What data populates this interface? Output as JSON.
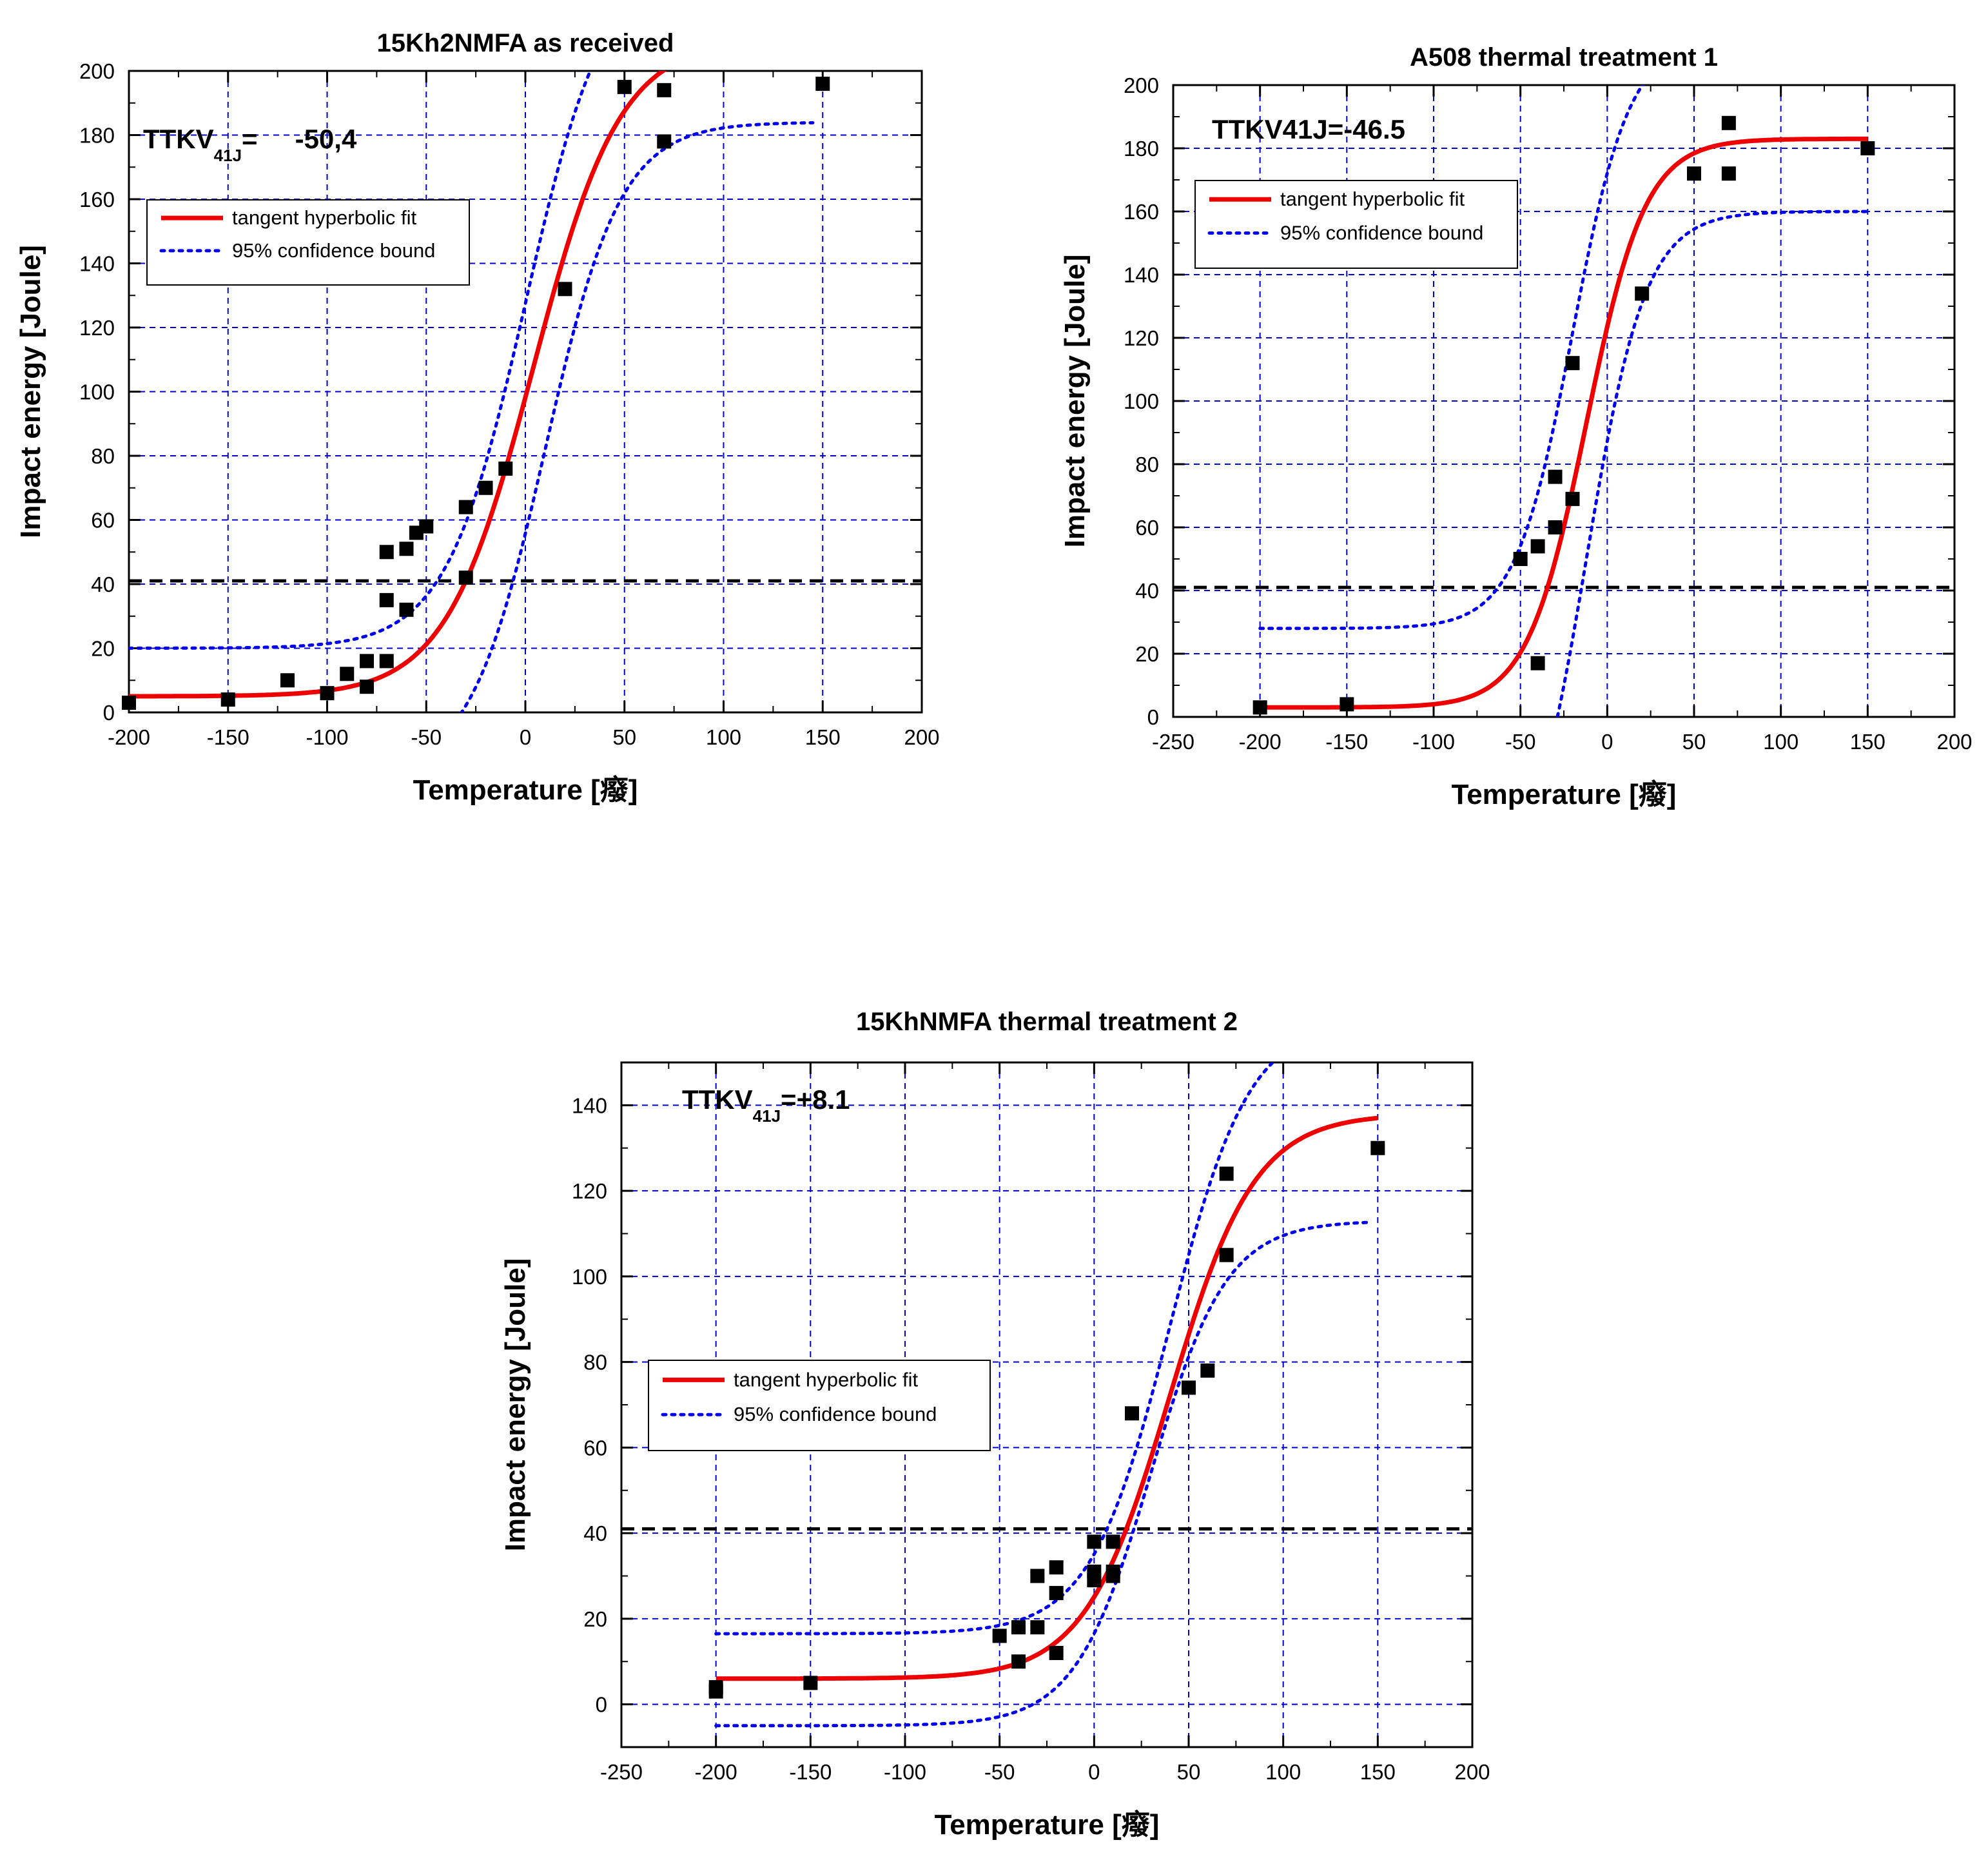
{
  "chart_data": [
    {
      "type": "scatter",
      "title": "15Kh2NMFA as received",
      "xlabel": "Temperature [",
      "xlabel_unit_glyph": "癈",
      "xlabel_close": "]",
      "ylabel": "Impact energy [Joule]",
      "xlim": [
        -200,
        200
      ],
      "ylim": [
        0,
        200
      ],
      "xticks": [
        -200,
        -150,
        -100,
        -50,
        0,
        50,
        100,
        150,
        200
      ],
      "xtick_labels": [
        "-200",
        "-150",
        "-100",
        "-50",
        "0",
        "50",
        "100",
        "150",
        "200"
      ],
      "yticks": [
        0,
        20,
        40,
        60,
        80,
        100,
        120,
        140,
        160,
        180,
        200
      ],
      "ytick_labels": [
        "0",
        "20",
        "40",
        "60",
        "80",
        "100",
        "120",
        "140",
        "160",
        "180",
        "200"
      ],
      "annotation": {
        "prefix": "TTKV",
        "sub": "41J",
        "eq": "=",
        "value": "-50,4"
      },
      "reference_level": 41,
      "legend": {
        "position": "upper-left",
        "entries": [
          "tangent hyperbolic fit",
          "95% confidence bound"
        ]
      },
      "grid": true,
      "measured_points": [
        {
          "x": -200,
          "y": 3
        },
        {
          "x": -150,
          "y": 4
        },
        {
          "x": -120,
          "y": 10
        },
        {
          "x": -100,
          "y": 6
        },
        {
          "x": -90,
          "y": 12
        },
        {
          "x": -80,
          "y": 8
        },
        {
          "x": -80,
          "y": 16
        },
        {
          "x": -70,
          "y": 16
        },
        {
          "x": -70,
          "y": 35
        },
        {
          "x": -70,
          "y": 50
        },
        {
          "x": -60,
          "y": 32
        },
        {
          "x": -60,
          "y": 51
        },
        {
          "x": -55,
          "y": 56
        },
        {
          "x": -50,
          "y": 58
        },
        {
          "x": -30,
          "y": 42
        },
        {
          "x": -30,
          "y": 64
        },
        {
          "x": -20,
          "y": 70
        },
        {
          "x": -10,
          "y": 76
        },
        {
          "x": 20,
          "y": 132
        },
        {
          "x": 50,
          "y": 195
        },
        {
          "x": 70,
          "y": 194
        },
        {
          "x": 70,
          "y": 178
        },
        {
          "x": 150,
          "y": 196
        }
      ],
      "fit": {
        "lower_shelf": 5,
        "upper_shelf": 210,
        "T0": 4,
        "C": 44,
        "x_from": -200,
        "x_to": 150
      },
      "conf_upper": {
        "lower_shelf": 20,
        "upper_shelf": 235,
        "T0": 0,
        "C": 40,
        "x_from": -200,
        "x_to": 150
      },
      "conf_lower": {
        "lower_shelf": -20,
        "upper_shelf": 184,
        "T0": 10,
        "C": 38,
        "x_from": -200,
        "x_to": 145
      }
    },
    {
      "type": "scatter",
      "title": "A508 thermal treatment 1",
      "xlabel": "Temperature [",
      "xlabel_unit_glyph": "癈",
      "xlabel_close": "]",
      "ylabel": "Impact energy [Joule]",
      "xlim": [
        -250,
        200
      ],
      "ylim": [
        0,
        200
      ],
      "xticks": [
        -250,
        -200,
        -150,
        -100,
        -50,
        0,
        50,
        100,
        150,
        200
      ],
      "xtick_labels": [
        "-250",
        "-200",
        "-150",
        "-100",
        "-50",
        "0",
        "50",
        "100",
        "150",
        "200"
      ],
      "yticks": [
        0,
        20,
        40,
        60,
        80,
        100,
        120,
        140,
        160,
        180,
        200
      ],
      "ytick_labels": [
        "0",
        "20",
        "40",
        "60",
        "80",
        "100",
        "120",
        "140",
        "160",
        "180",
        "200"
      ],
      "annotation": {
        "prefix": "TTKV41J=-46.5"
      },
      "reference_level": 41,
      "legend": {
        "position": "upper-left",
        "entries": [
          "tangent hyperbolic fit",
          "95% confidence bound"
        ]
      },
      "grid": true,
      "measured_points": [
        {
          "x": -200,
          "y": 3
        },
        {
          "x": -150,
          "y": 4
        },
        {
          "x": -50,
          "y": 50
        },
        {
          "x": -40,
          "y": 54
        },
        {
          "x": -40,
          "y": 17
        },
        {
          "x": -30,
          "y": 60
        },
        {
          "x": -30,
          "y": 76
        },
        {
          "x": -20,
          "y": 69
        },
        {
          "x": -20,
          "y": 112
        },
        {
          "x": 20,
          "y": 134
        },
        {
          "x": 50,
          "y": 172
        },
        {
          "x": 70,
          "y": 188
        },
        {
          "x": 70,
          "y": 172
        },
        {
          "x": 150,
          "y": 180
        }
      ],
      "fit": {
        "lower_shelf": 3,
        "upper_shelf": 183,
        "T0": -12,
        "C": 34,
        "x_from": -200,
        "x_to": 150
      },
      "conf_upper": {
        "lower_shelf": 28,
        "upper_shelf": 215,
        "T0": -20,
        "C": 33,
        "x_from": -200,
        "x_to": 150
      },
      "conf_lower": {
        "lower_shelf": -60,
        "upper_shelf": 160,
        "T0": -12,
        "C": 34,
        "x_from": -200,
        "x_to": 150
      }
    },
    {
      "type": "scatter",
      "title": "15KhNMFA  thermal treatment 2",
      "xlabel": "Temperature [",
      "xlabel_unit_glyph": "癈",
      "xlabel_close": "]",
      "ylabel": "Impact energy [Joule]",
      "xlim": [
        -250,
        200
      ],
      "ylim": [
        -10,
        150
      ],
      "xticks": [
        -250,
        -200,
        -150,
        -100,
        -50,
        0,
        50,
        100,
        150,
        200
      ],
      "xtick_labels": [
        "-250",
        "-200",
        "-150",
        "-100",
        "-50",
        "0",
        "50",
        "100",
        "150",
        "200"
      ],
      "yticks": [
        0,
        20,
        40,
        60,
        80,
        100,
        120,
        140
      ],
      "ytick_labels": [
        "0",
        "20",
        "40",
        "60",
        "80",
        "100",
        "120",
        "140"
      ],
      "annotation": {
        "prefix": "TTKV",
        "sub": "41J",
        "eq": "=",
        "value": "+8.1"
      },
      "reference_level": 41,
      "legend": {
        "position": "middle-left",
        "entries": [
          "tangent hyperbolic fit",
          "95% confidence bound"
        ]
      },
      "grid": true,
      "measured_points": [
        {
          "x": -200,
          "y": 3
        },
        {
          "x": -200,
          "y": 4
        },
        {
          "x": -150,
          "y": 5
        },
        {
          "x": -50,
          "y": 16
        },
        {
          "x": -40,
          "y": 10
        },
        {
          "x": -40,
          "y": 18
        },
        {
          "x": -30,
          "y": 18
        },
        {
          "x": -30,
          "y": 30
        },
        {
          "x": -20,
          "y": 12
        },
        {
          "x": -20,
          "y": 26
        },
        {
          "x": -20,
          "y": 32
        },
        {
          "x": 0,
          "y": 29
        },
        {
          "x": 0,
          "y": 31
        },
        {
          "x": 0,
          "y": 38
        },
        {
          "x": 10,
          "y": 30
        },
        {
          "x": 10,
          "y": 31
        },
        {
          "x": 10,
          "y": 38
        },
        {
          "x": 20,
          "y": 68
        },
        {
          "x": 50,
          "y": 74
        },
        {
          "x": 60,
          "y": 78
        },
        {
          "x": 70,
          "y": 105
        },
        {
          "x": 70,
          "y": 124
        },
        {
          "x": 150,
          "y": 130
        }
      ],
      "fit": {
        "lower_shelf": 6,
        "upper_shelf": 138,
        "T0": 40,
        "C": 45,
        "x_from": -200,
        "x_to": 150
      },
      "conf_upper": {
        "lower_shelf": 16.5,
        "upper_shelf": 160,
        "T0": 40,
        "C": 42,
        "x_from": -200,
        "x_to": 140
      },
      "conf_lower": {
        "lower_shelf": -5,
        "upper_shelf": 113,
        "T0": 30,
        "C": 40,
        "x_from": -200,
        "x_to": 145
      }
    }
  ]
}
